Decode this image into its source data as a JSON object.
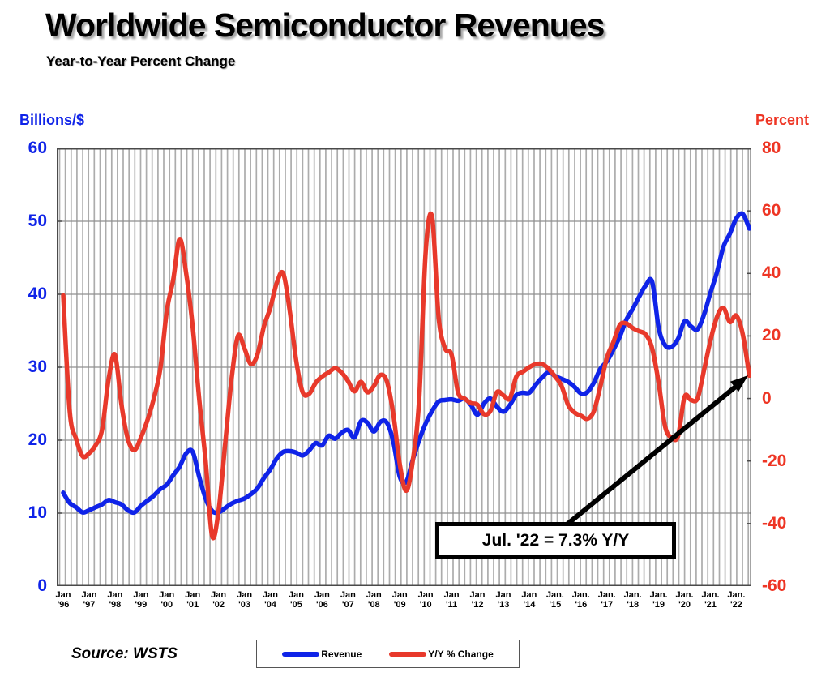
{
  "title": "Worldwide Semiconductor Revenues",
  "subtitle": "Year-to-Year Percent Change",
  "left_axis": {
    "header": "Billions/$",
    "color": "#0F23E8",
    "ticks": [
      60,
      50,
      40,
      30,
      20,
      10,
      0
    ],
    "min": 0,
    "max": 60
  },
  "right_axis": {
    "header": "Percent",
    "color": "#EE3524",
    "ticks": [
      80,
      60,
      40,
      20,
      0,
      -20,
      -40,
      -60
    ],
    "min": -60,
    "max": 80
  },
  "x_axis": {
    "labels": [
      {
        "line1": "Jan",
        "line2": "'96"
      },
      {
        "line1": "Jan",
        "line2": "'97"
      },
      {
        "line1": "Jan",
        "line2": "'98"
      },
      {
        "line1": "Jan",
        "line2": "'99"
      },
      {
        "line1": "Jan",
        "line2": "'00"
      },
      {
        "line1": "Jan",
        "line2": "'01"
      },
      {
        "line1": "Jan",
        "line2": "'02"
      },
      {
        "line1": "Jan",
        "line2": "'03"
      },
      {
        "line1": "Jan",
        "line2": "'04"
      },
      {
        "line1": "Jan",
        "line2": "'05"
      },
      {
        "line1": "Jan",
        "line2": "'06"
      },
      {
        "line1": "Jan",
        "line2": "'07"
      },
      {
        "line1": "Jan",
        "line2": "'08"
      },
      {
        "line1": "Jan",
        "line2": "'09"
      },
      {
        "line1": "Jan",
        "line2": "'10"
      },
      {
        "line1": "Jan",
        "line2": "'11"
      },
      {
        "line1": "Jan",
        "line2": "'12"
      },
      {
        "line1": "Jan",
        "line2": "'13"
      },
      {
        "line1": "Jan",
        "line2": "'14"
      },
      {
        "line1": "Jan.",
        "line2": "'15"
      },
      {
        "line1": "Jan.",
        "line2": "'16"
      },
      {
        "line1": "Jan.",
        "line2": "'17"
      },
      {
        "line1": "Jan.",
        "line2": "'18"
      },
      {
        "line1": "Jan.",
        "line2": "'19"
      },
      {
        "line1": "Jan.",
        "line2": "'20"
      },
      {
        "line1": "Jan.",
        "line2": "'21"
      },
      {
        "line1": "Jan.",
        "line2": "'22"
      }
    ]
  },
  "annotation": {
    "text": "Jul. '22 = 7.3% Y/Y"
  },
  "legend": [
    {
      "label": "Revenue",
      "color": "#0F23E8"
    },
    {
      "label": "Y/Y % Change",
      "color": "#E8392B"
    }
  ],
  "source": "Source: WSTS",
  "chart_data": {
    "type": "line",
    "x_start": "1996-01",
    "x_end": "2022-07",
    "sample_interval_months": 3,
    "grid": "monthly vertical stripes + horizontal every 10 (left scale)",
    "legend_position": "bottom-center",
    "left_ylim": [
      0,
      60
    ],
    "right_ylim": [
      -60,
      80
    ],
    "series": [
      {
        "name": "Revenue",
        "axis": "left",
        "unit": "US$ billions (monthly)",
        "color": "#0F23E8",
        "values": [
          12.8,
          11.4,
          10.8,
          10.1,
          10.4,
          10.8,
          11.2,
          11.8,
          11.5,
          11.2,
          10.4,
          10.1,
          11.0,
          11.7,
          12.4,
          13.3,
          13.9,
          15.2,
          16.4,
          18.2,
          18.4,
          15.0,
          12.0,
          10.3,
          10.1,
          10.7,
          11.3,
          11.7,
          12.0,
          12.6,
          13.4,
          14.8,
          16.0,
          17.5,
          18.4,
          18.5,
          18.3,
          17.9,
          18.6,
          19.6,
          19.3,
          20.6,
          20.2,
          21.0,
          21.4,
          20.4,
          22.6,
          22.4,
          21.2,
          22.5,
          22.4,
          19.8,
          15.0,
          14.3,
          17.3,
          20.0,
          22.3,
          24.0,
          25.3,
          25.5,
          25.6,
          25.4,
          25.7,
          24.8,
          23.5,
          25.0,
          25.7,
          24.6,
          23.9,
          24.8,
          26.2,
          26.5,
          26.5,
          27.6,
          28.6,
          29.3,
          28.8,
          28.4,
          28.0,
          27.3,
          26.4,
          26.6,
          27.9,
          29.8,
          30.8,
          32.4,
          34.2,
          36.5,
          38.0,
          39.7,
          41.2,
          41.7,
          35.4,
          33.0,
          32.8,
          33.9,
          36.3,
          35.6,
          35.2,
          37.2,
          40.2,
          43.0,
          46.5,
          48.3,
          50.4,
          51.0,
          49.0
        ]
      },
      {
        "name": "Y/Y % Change",
        "axis": "right",
        "unit": "percent",
        "color": "#E8392B",
        "values": [
          33,
          -4,
          -13,
          -18.5,
          -17.5,
          -15,
          -10,
          6,
          14,
          -2,
          -13,
          -16.5,
          -12.5,
          -7,
          0,
          9.5,
          28,
          38,
          51,
          40,
          23,
          0,
          -20,
          -44,
          -36,
          -15,
          6,
          20,
          16,
          11,
          14,
          23,
          29,
          37,
          40,
          28,
          12,
          2,
          1.5,
          5,
          7,
          8.3,
          9.7,
          8.3,
          5.6,
          2.3,
          5.3,
          2,
          4,
          7.5,
          5.5,
          -5,
          -21,
          -29.5,
          -20,
          0,
          47,
          58,
          26,
          16,
          14,
          2,
          0,
          -1.5,
          -2,
          -5,
          -4,
          2,
          1,
          0,
          7,
          8.5,
          10,
          11,
          11,
          9.5,
          7,
          4,
          -2,
          -4.5,
          -5.5,
          -6.5,
          -4,
          4,
          13,
          18,
          23.5,
          24,
          22.5,
          21.5,
          20.5,
          16,
          5,
          -9,
          -12.5,
          -12,
          0.5,
          -0.5,
          0,
          9,
          18.5,
          26,
          29,
          24.5,
          26.5,
          20.5,
          7.3
        ]
      }
    ],
    "annotations": [
      {
        "text": "Jul. '22 = 7.3% Y/Y",
        "points_to": "last point of Y/Y % Change series"
      }
    ]
  }
}
